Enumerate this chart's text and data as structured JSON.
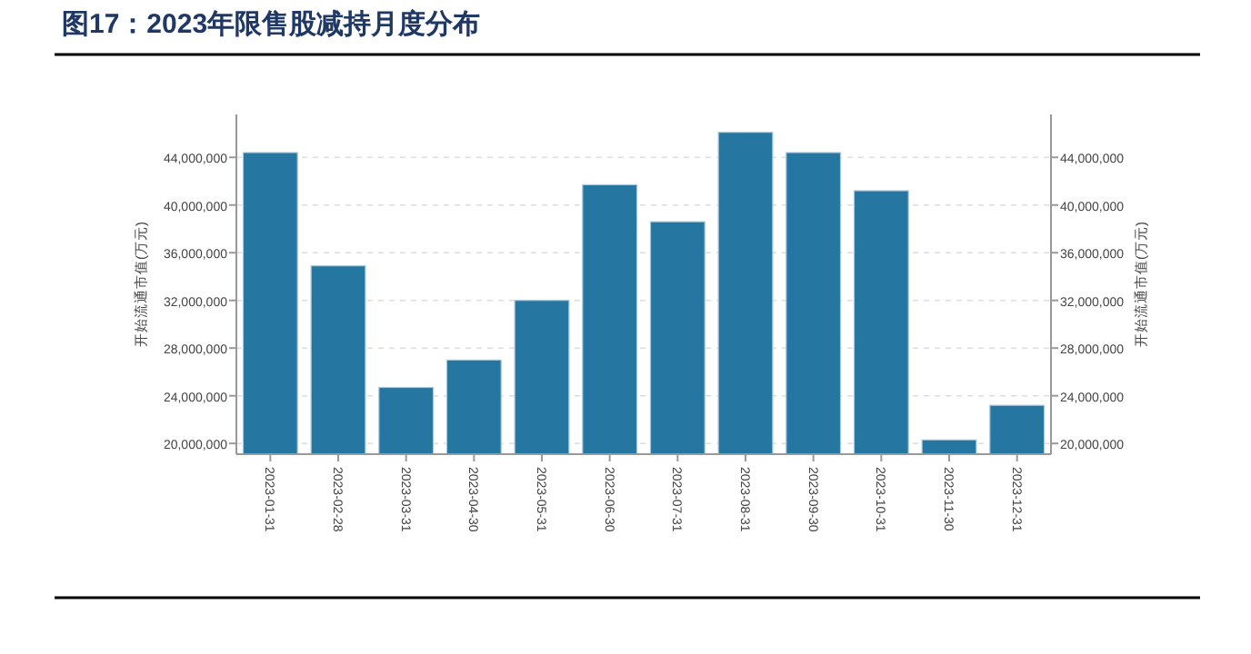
{
  "chart_data": {
    "type": "bar",
    "title": "图17：2023年限售股减持月度分布",
    "ylabel": "开始流通市值(万元)",
    "y2label": "开始流通市值(万元)",
    "categories": [
      "2023-01-31",
      "2023-02-28",
      "2023-03-31",
      "2023-04-30",
      "2023-05-31",
      "2023-06-30",
      "2023-07-31",
      "2023-08-31",
      "2023-09-30",
      "2023-10-31",
      "2023-11-30",
      "2023-12-31"
    ],
    "values": [
      44400000,
      34900000,
      24700000,
      27000000,
      32000000,
      41700000,
      38600000,
      46100000,
      44400000,
      41200000,
      20300000,
      23200000
    ],
    "color": "#2576a0",
    "ylim": [
      19100000,
      47600000
    ],
    "yticks": [
      {
        "value": 20000000,
        "label": "20,000,000"
      },
      {
        "value": 24000000,
        "label": "24,000,000"
      },
      {
        "value": 28000000,
        "label": "28,000,000"
      },
      {
        "value": 32000000,
        "label": "32,000,000"
      },
      {
        "value": 36000000,
        "label": "36,000,000"
      },
      {
        "value": 40000000,
        "label": "40,000,000"
      },
      {
        "value": 44000000,
        "label": "44,000,000"
      }
    ],
    "y2lim": [
      19100000,
      47600000
    ],
    "y2ticks": [
      {
        "value": 20000000,
        "label": "20,000,000"
      },
      {
        "value": 24000000,
        "label": "24,000,000"
      },
      {
        "value": 28000000,
        "label": "28,000,000"
      },
      {
        "value": 32000000,
        "label": "32,000,000"
      },
      {
        "value": 36000000,
        "label": "36,000,000"
      },
      {
        "value": 40000000,
        "label": "40,000,000"
      },
      {
        "value": 44000000,
        "label": "44,000,000"
      }
    ],
    "grid": "y"
  }
}
